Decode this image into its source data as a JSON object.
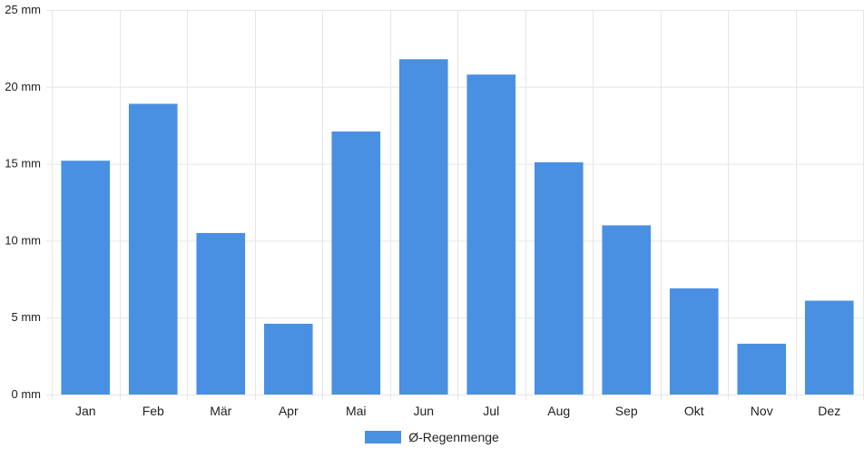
{
  "chart_data": {
    "type": "bar",
    "categories": [
      "Jan",
      "Feb",
      "Mär",
      "Apr",
      "Mai",
      "Jun",
      "Jul",
      "Aug",
      "Sep",
      "Okt",
      "Nov",
      "Dez"
    ],
    "series": [
      {
        "name": "Ø-Regenmenge",
        "values": [
          15.2,
          18.9,
          10.5,
          4.6,
          17.1,
          21.8,
          20.8,
          15.1,
          11.0,
          6.9,
          3.3,
          6.1
        ]
      }
    ],
    "y_ticks": [
      "0 mm",
      "5 mm",
      "10 mm",
      "15 mm",
      "20 mm",
      "25 mm"
    ],
    "ylim": [
      0,
      25
    ],
    "y_unit": "mm",
    "grid": true,
    "legend_position": "bottom-center",
    "colors": {
      "bar": "#4a90e2",
      "grid": "#e6e6e6"
    }
  }
}
